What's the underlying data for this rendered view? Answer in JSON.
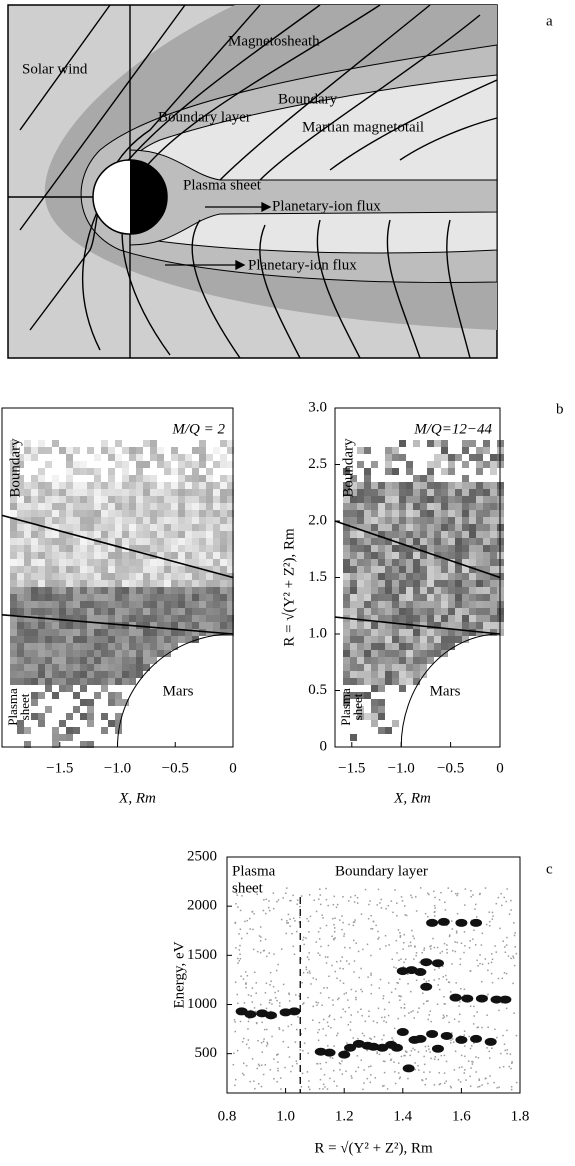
{
  "panel_a": {
    "label": "a",
    "solar_wind": "Solar wind",
    "magnetosheath": "Magnetosheath",
    "boundary": "Boundary",
    "boundary_layer": "Boundary layer",
    "magnetotail": "Martian magnetotail",
    "plasma_sheet": "Plasma sheet",
    "ion_flux_1": "Planetary-ion flux",
    "ion_flux_2": "Planetary-ion flux"
  },
  "panel_b": {
    "label": "b",
    "plots": [
      {
        "annotation": "M/Q = 2",
        "boundary": "Boundary",
        "plasma": "Plasma",
        "sheet": "sheet",
        "mars": "Mars",
        "xlabel": "X, Rm",
        "xlim": [
          -2.0,
          0
        ],
        "ylim": [
          0,
          3.0
        ],
        "xticks": [
          {
            "value": -1.5,
            "label": "−1.5"
          },
          {
            "value": -1,
            "label": "−1.0"
          },
          {
            "value": -0.5,
            "label": "−0.5"
          },
          0
        ],
        "mars_radius": 1,
        "lines": [
          [
            -2.0,
            2.05,
            0,
            1.5
          ],
          [
            -2.0,
            1.17,
            0,
            1.0
          ]
        ]
      },
      {
        "annotation": "M/Q=12−44",
        "boundary": "Boundary",
        "plasma": "Plasma",
        "sheet": "sheet",
        "mars": "Mars",
        "xlabel": "X, Rm",
        "ylabel": "R = √(Y² + Z²), Rm",
        "xlim": [
          -1.67,
          0
        ],
        "ylim": [
          0,
          3.0
        ],
        "xticks": [
          {
            "value": -1.5,
            "label": "−1.5"
          },
          {
            "value": -1,
            "label": "−1.0"
          },
          {
            "value": -0.5,
            "label": "−0.5"
          },
          0
        ],
        "yticks": [
          0,
          0.5,
          {
            "value": 1,
            "label": "1.0"
          },
          1.5,
          {
            "value": 2,
            "label": "2.0"
          },
          2.5,
          {
            "value": 3,
            "label": "3.0"
          }
        ],
        "mars_radius": 1,
        "lines": [
          [
            -1.67,
            2.0,
            0,
            1.5
          ],
          [
            -1.67,
            1.15,
            0,
            1.0
          ]
        ]
      }
    ]
  },
  "panel_c": {
    "label": "c",
    "plasma": "Plasma",
    "sheet": "sheet",
    "boundary_layer": "Boundary layer",
    "ylabel": "Energy, eV",
    "xlabel": "R = √(Y² + Z²), Rm",
    "xlim": [
      0.8,
      1.8
    ],
    "ylim": [
      100,
      2500
    ],
    "xticks": [
      0.8,
      {
        "value": 1,
        "label": "1.0"
      },
      1.2,
      1.4,
      1.6,
      1.8
    ],
    "yticks": [
      500,
      1000,
      1500,
      2000,
      2500
    ],
    "divider_x": 1.05,
    "points": {
      "x": [
        0.85,
        0.88,
        0.92,
        0.95,
        1.0,
        1.03,
        1.12,
        1.15,
        1.2,
        1.22,
        1.25,
        1.28,
        1.3,
        1.33,
        1.36,
        1.38,
        1.4,
        1.42,
        1.44,
        1.4,
        1.43,
        1.46,
        1.48,
        1.52,
        1.5,
        1.54,
        1.6,
        1.65,
        1.58,
        1.62,
        1.67,
        1.72,
        1.75,
        1.5,
        1.55,
        1.6,
        1.65,
        1.7,
        1.48,
        1.46,
        1.52
      ],
      "y": [
        930,
        900,
        910,
        890,
        920,
        930,
        520,
        510,
        490,
        560,
        600,
        580,
        570,
        560,
        590,
        560,
        720,
        350,
        640,
        1340,
        1350,
        1330,
        1430,
        1420,
        1830,
        1840,
        1830,
        1830,
        1070,
        1060,
        1060,
        1050,
        1050,
        700,
        680,
        640,
        650,
        620,
        1180,
        650,
        550
      ]
    }
  }
}
